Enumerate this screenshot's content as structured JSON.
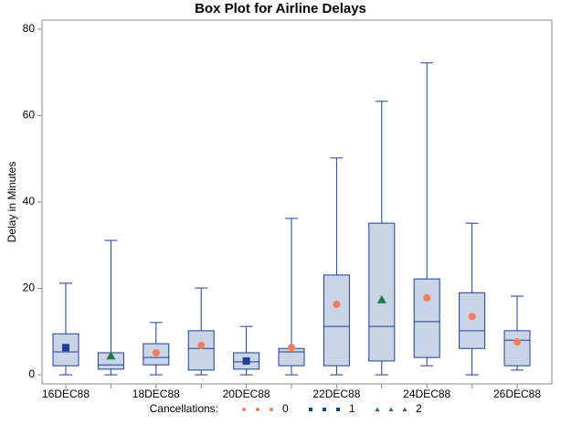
{
  "chart_data": {
    "type": "box",
    "title": "Box Plot for Airline Delays",
    "y_label": "Delay in Minutes",
    "categories": [
      "16DEC88",
      null,
      "18DEC88",
      null,
      "20DEC88",
      null,
      "22DEC88",
      null,
      "24DEC88",
      null,
      "26DEC88"
    ],
    "boxes": [
      {
        "min": 0,
        "q1": 2.1,
        "median": 5.3,
        "q3": 9.5,
        "max": 21.2
      },
      {
        "min": 0,
        "q1": 1.3,
        "median": 2.3,
        "q3": 5.1,
        "max": 31.1
      },
      {
        "min": 0,
        "q1": 2.3,
        "median": 4,
        "q3": 7.2,
        "max": 12.1
      },
      {
        "min": 0,
        "q1": 1.1,
        "median": 6.1,
        "q3": 10.2,
        "max": 20.1
      },
      {
        "min": 0,
        "q1": 1.3,
        "median": 3,
        "q3": 5.1,
        "max": 11.2
      },
      {
        "min": 0,
        "q1": 2.1,
        "median": 5.3,
        "q3": 6.1,
        "max": 36.2
      },
      {
        "min": 0,
        "q1": 2.1,
        "median": 11.2,
        "q3": 23.1,
        "max": 50.2
      },
      {
        "min": 0,
        "q1": 3.2,
        "median": 11.2,
        "q3": 35.1,
        "max": 63.3
      },
      {
        "min": 2.1,
        "q1": 4,
        "median": 12.3,
        "q3": 22.2,
        "max": 72.2
      },
      {
        "min": 0,
        "q1": 6.1,
        "median": 10.2,
        "q3": 19,
        "max": 35.1
      },
      {
        "min": 1.1,
        "q1": 2.1,
        "median": 8,
        "q3": 10.2,
        "max": 18.2
      }
    ],
    "box_color": "#1f3e95",
    "box_fill": "#c9d4e7",
    "legend_title": "Cancellations:",
    "series": [
      {
        "name": "0",
        "color": "#f47c5c",
        "marker": "circle",
        "values": [
          null,
          null,
          5.1,
          6.8,
          null,
          6.3,
          16.3,
          null,
          17.8,
          13.5,
          7.6
        ]
      },
      {
        "name": "1",
        "color": "#1f3e95",
        "marker": "square",
        "values": [
          6.3,
          null,
          null,
          null,
          3.2,
          null,
          null,
          null,
          null,
          null,
          null
        ]
      },
      {
        "name": "2",
        "color": "#1b7a44",
        "marker": "triangle",
        "values": [
          null,
          4.4,
          null,
          null,
          null,
          null,
          null,
          17.4,
          null,
          null,
          null
        ]
      }
    ],
    "ylim": [
      -2.1,
      82.1
    ],
    "yticks": [
      0,
      20,
      40,
      60,
      80
    ]
  }
}
